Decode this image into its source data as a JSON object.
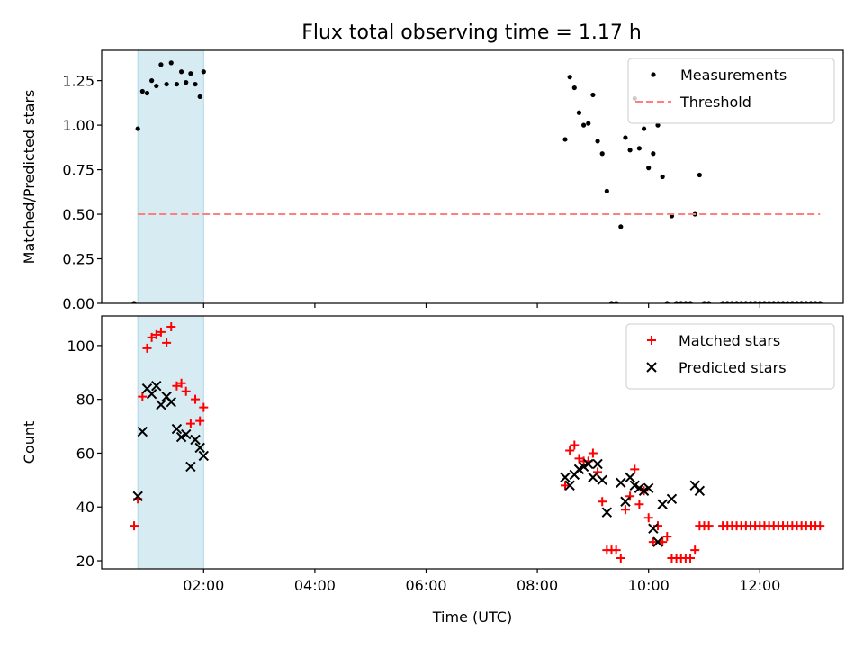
{
  "figure": {
    "title": "Flux total observing time = 1.17 h"
  },
  "chart_data": [
    {
      "type": "scatter",
      "panel": "top",
      "title": "Flux total observing time = 1.17 h",
      "xlabel": "",
      "ylabel": "Matched/Predicted stars",
      "x_unit": "hours UTC",
      "xlim": [
        "00:10",
        "13:30"
      ],
      "ylim": [
        0.0,
        1.42
      ],
      "y_ticks": [
        0.0,
        0.25,
        0.5,
        0.75,
        1.0,
        1.25
      ],
      "y_tick_labels": [
        "0.00",
        "0.25",
        "0.50",
        "0.75",
        "1.00",
        "1.25"
      ],
      "x_ticks": [
        "02:00",
        "04:00",
        "06:00",
        "08:00",
        "10:00",
        "12:00"
      ],
      "x_tick_labels_shown": false,
      "shaded_span": {
        "from": "00:49",
        "to": "02:00",
        "color": "#add8e6"
      },
      "legend_position": "top-right",
      "series": [
        {
          "name": "Measurements",
          "style": "dot",
          "color": "#000000",
          "points": [
            [
              "00:45",
              0.0
            ],
            [
              "00:49",
              0.98
            ],
            [
              "00:54",
              1.19
            ],
            [
              "00:59",
              1.18
            ],
            [
              "01:04",
              1.25
            ],
            [
              "01:09",
              1.22
            ],
            [
              "01:14",
              1.34
            ],
            [
              "01:20",
              1.23
            ],
            [
              "01:25",
              1.35
            ],
            [
              "01:31",
              1.23
            ],
            [
              "01:36",
              1.3
            ],
            [
              "01:41",
              1.24
            ],
            [
              "01:46",
              1.29
            ],
            [
              "01:51",
              1.23
            ],
            [
              "01:56",
              1.16
            ],
            [
              "02:00",
              1.3
            ],
            [
              "08:30",
              0.92
            ],
            [
              "08:35",
              1.27
            ],
            [
              "08:40",
              1.21
            ],
            [
              "08:45",
              1.07
            ],
            [
              "08:50",
              1.0
            ],
            [
              "08:55",
              1.01
            ],
            [
              "09:00",
              1.17
            ],
            [
              "09:05",
              0.91
            ],
            [
              "09:10",
              0.84
            ],
            [
              "09:15",
              0.63
            ],
            [
              "09:20",
              0.0
            ],
            [
              "09:25",
              0.0
            ],
            [
              "09:30",
              0.43
            ],
            [
              "09:35",
              0.93
            ],
            [
              "09:40",
              0.86
            ],
            [
              "09:45",
              1.15
            ],
            [
              "09:50",
              0.87
            ],
            [
              "09:55",
              0.98
            ],
            [
              "10:00",
              0.76
            ],
            [
              "10:05",
              0.84
            ],
            [
              "10:10",
              1.0
            ],
            [
              "10:15",
              0.71
            ],
            [
              "10:20",
              0.0
            ],
            [
              "10:25",
              0.49
            ],
            [
              "10:30",
              0.0
            ],
            [
              "10:35",
              0.0
            ],
            [
              "10:40",
              0.0
            ],
            [
              "10:45",
              0.0
            ],
            [
              "10:50",
              0.5
            ],
            [
              "10:55",
              0.72
            ],
            [
              "11:00",
              0.0
            ],
            [
              "11:05",
              0.0
            ],
            [
              "11:20",
              0.0
            ],
            [
              "11:25",
              0.0
            ],
            [
              "11:30",
              0.0
            ],
            [
              "11:35",
              0.0
            ],
            [
              "11:40",
              0.0
            ],
            [
              "11:45",
              0.0
            ],
            [
              "11:50",
              0.0
            ],
            [
              "11:55",
              0.0
            ],
            [
              "12:00",
              0.0
            ],
            [
              "12:05",
              0.0
            ],
            [
              "12:10",
              0.0
            ],
            [
              "12:15",
              0.0
            ],
            [
              "12:20",
              0.0
            ],
            [
              "12:25",
              0.0
            ],
            [
              "12:30",
              0.0
            ],
            [
              "12:35",
              0.0
            ],
            [
              "12:40",
              0.0
            ],
            [
              "12:45",
              0.0
            ],
            [
              "12:50",
              0.0
            ],
            [
              "12:55",
              0.0
            ],
            [
              "13:00",
              0.0
            ],
            [
              "13:05",
              0.0
            ]
          ]
        },
        {
          "name": "Threshold",
          "style": "dashed-line",
          "color": "#ff7f7f",
          "points": [
            [
              "00:49",
              0.5
            ],
            [
              "13:05",
              0.5
            ]
          ]
        }
      ]
    },
    {
      "type": "scatter",
      "panel": "bottom",
      "xlabel": "Time (UTC)",
      "ylabel": "Count",
      "x_unit": "hours UTC",
      "xlim": [
        "00:10",
        "13:30"
      ],
      "ylim": [
        17,
        111
      ],
      "y_ticks": [
        20,
        40,
        60,
        80,
        100
      ],
      "y_tick_labels": [
        "20",
        "40",
        "60",
        "80",
        "100"
      ],
      "x_ticks": [
        "02:00",
        "04:00",
        "06:00",
        "08:00",
        "10:00",
        "12:00"
      ],
      "x_tick_labels": [
        "02:00",
        "04:00",
        "06:00",
        "08:00",
        "10:00",
        "12:00"
      ],
      "shaded_span": {
        "from": "00:49",
        "to": "02:00",
        "color": "#add8e6"
      },
      "legend_position": "top-right",
      "series": [
        {
          "name": "Matched stars",
          "style": "plus",
          "color": "#ff0000",
          "points": [
            [
              "00:45",
              33
            ],
            [
              "00:49",
              43
            ],
            [
              "00:54",
              81
            ],
            [
              "00:59",
              99
            ],
            [
              "01:04",
              103
            ],
            [
              "01:09",
              104
            ],
            [
              "01:14",
              105
            ],
            [
              "01:20",
              101
            ],
            [
              "01:25",
              107
            ],
            [
              "01:31",
              85
            ],
            [
              "01:36",
              86
            ],
            [
              "01:41",
              83
            ],
            [
              "01:46",
              71
            ],
            [
              "01:51",
              80
            ],
            [
              "01:56",
              72
            ],
            [
              "02:00",
              77
            ],
            [
              "08:30",
              48
            ],
            [
              "08:35",
              61
            ],
            [
              "08:40",
              63
            ],
            [
              "08:45",
              58
            ],
            [
              "08:50",
              57
            ],
            [
              "08:55",
              57
            ],
            [
              "09:00",
              60
            ],
            [
              "09:05",
              53
            ],
            [
              "09:10",
              42
            ],
            [
              "09:15",
              24
            ],
            [
              "09:20",
              24
            ],
            [
              "09:25",
              24
            ],
            [
              "09:30",
              21
            ],
            [
              "09:35",
              39
            ],
            [
              "09:40",
              44
            ],
            [
              "09:45",
              54
            ],
            [
              "09:50",
              41
            ],
            [
              "09:55",
              46
            ],
            [
              "10:00",
              36
            ],
            [
              "10:05",
              27
            ],
            [
              "10:10",
              33
            ],
            [
              "10:15",
              27
            ],
            [
              "10:20",
              29
            ],
            [
              "10:25",
              21
            ],
            [
              "10:30",
              21
            ],
            [
              "10:35",
              21
            ],
            [
              "10:40",
              21
            ],
            [
              "10:45",
              21
            ],
            [
              "10:50",
              24
            ],
            [
              "10:55",
              33
            ],
            [
              "11:00",
              33
            ],
            [
              "11:05",
              33
            ],
            [
              "11:20",
              33
            ],
            [
              "11:25",
              33
            ],
            [
              "11:30",
              33
            ],
            [
              "11:35",
              33
            ],
            [
              "11:40",
              33
            ],
            [
              "11:45",
              33
            ],
            [
              "11:50",
              33
            ],
            [
              "11:55",
              33
            ],
            [
              "12:00",
              33
            ],
            [
              "12:05",
              33
            ],
            [
              "12:10",
              33
            ],
            [
              "12:15",
              33
            ],
            [
              "12:20",
              33
            ],
            [
              "12:25",
              33
            ],
            [
              "12:30",
              33
            ],
            [
              "12:35",
              33
            ],
            [
              "12:40",
              33
            ],
            [
              "12:45",
              33
            ],
            [
              "12:50",
              33
            ],
            [
              "12:55",
              33
            ],
            [
              "13:00",
              33
            ],
            [
              "13:05",
              33
            ]
          ]
        },
        {
          "name": "Predicted stars",
          "style": "x",
          "color": "#000000",
          "points": [
            [
              "00:49",
              44
            ],
            [
              "00:54",
              68
            ],
            [
              "00:59",
              84
            ],
            [
              "01:04",
              82
            ],
            [
              "01:09",
              85
            ],
            [
              "01:14",
              78
            ],
            [
              "01:20",
              81
            ],
            [
              "01:25",
              79
            ],
            [
              "01:31",
              69
            ],
            [
              "01:36",
              66
            ],
            [
              "01:41",
              67
            ],
            [
              "01:46",
              55
            ],
            [
              "01:51",
              65
            ],
            [
              "01:56",
              62
            ],
            [
              "02:00",
              59
            ],
            [
              "08:30",
              51
            ],
            [
              "08:35",
              48
            ],
            [
              "08:40",
              52
            ],
            [
              "08:45",
              54
            ],
            [
              "08:50",
              55
            ],
            [
              "08:55",
              56
            ],
            [
              "09:00",
              51
            ],
            [
              "09:05",
              56
            ],
            [
              "09:10",
              50
            ],
            [
              "09:15",
              38
            ],
            [
              "09:30",
              49
            ],
            [
              "09:35",
              42
            ],
            [
              "09:40",
              51
            ],
            [
              "09:45",
              48
            ],
            [
              "09:50",
              47
            ],
            [
              "09:55",
              46
            ],
            [
              "10:00",
              47
            ],
            [
              "10:05",
              32
            ],
            [
              "10:10",
              27
            ],
            [
              "10:15",
              41
            ],
            [
              "10:25",
              43
            ],
            [
              "10:50",
              48
            ],
            [
              "10:55",
              46
            ]
          ]
        }
      ]
    }
  ]
}
